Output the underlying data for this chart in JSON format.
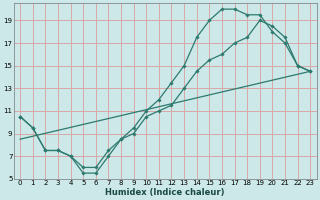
{
  "xlabel": "Humidex (Indice chaleur)",
  "xlim": [
    -0.5,
    23.5
  ],
  "ylim": [
    5,
    20.5
  ],
  "xticks": [
    0,
    1,
    2,
    3,
    4,
    5,
    6,
    7,
    8,
    9,
    10,
    11,
    12,
    13,
    14,
    15,
    16,
    17,
    18,
    19,
    20,
    21,
    22,
    23
  ],
  "yticks": [
    5,
    7,
    9,
    11,
    13,
    15,
    17,
    19
  ],
  "bg_color": "#cce8e8",
  "grid_color": "#d8a8a8",
  "line_color": "#2d7a6e",
  "line1_x": [
    0,
    1,
    2,
    3,
    4,
    5,
    6,
    7,
    8,
    9,
    10,
    11,
    12,
    13,
    14,
    15,
    16,
    17,
    18,
    19,
    20,
    21,
    22,
    23
  ],
  "line1_y": [
    10.5,
    9.5,
    7.5,
    7.5,
    7.0,
    6.0,
    6.0,
    7.5,
    8.5,
    9.0,
    10.5,
    11.0,
    11.5,
    13.0,
    14.5,
    15.5,
    16.0,
    17.0,
    17.5,
    19.0,
    18.5,
    17.5,
    15.0,
    14.5
  ],
  "line2_x": [
    0,
    1,
    2,
    3,
    4,
    5,
    6,
    7,
    8,
    9,
    10,
    11,
    12,
    13,
    14,
    15,
    16,
    17,
    18,
    19,
    20,
    21,
    22,
    23
  ],
  "line2_y": [
    10.5,
    9.5,
    7.5,
    7.5,
    7.0,
    5.5,
    5.5,
    7.0,
    8.5,
    9.5,
    11.0,
    12.0,
    13.5,
    15.0,
    17.5,
    19.0,
    20.0,
    20.0,
    19.5,
    19.5,
    18.0,
    17.0,
    15.0,
    14.5
  ],
  "line3_x": [
    0,
    23
  ],
  "line3_y": [
    8.5,
    14.5
  ]
}
